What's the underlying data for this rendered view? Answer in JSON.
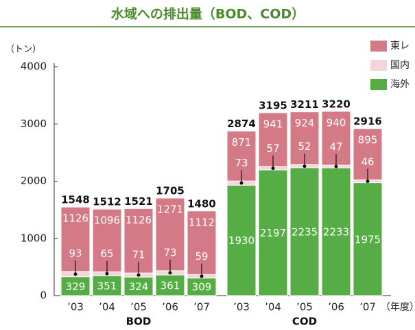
{
  "chart_data": {
    "type": "bar",
    "stacked": true,
    "title": "水域への排出量（BOD、COD）",
    "y_unit_label": "（トン）",
    "x_unit_label": "（年度）",
    "ylim": [
      0,
      4000
    ],
    "yticks": [
      0,
      1000,
      2000,
      3000,
      4000
    ],
    "legend": "top-right",
    "series": [
      {
        "name": "東レ",
        "color": "#d47a86"
      },
      {
        "name": "国内",
        "color": "#f3d6d9"
      },
      {
        "name": "海外",
        "color": "#56ad45"
      }
    ],
    "groups": [
      {
        "label": "BOD",
        "categories": [
          "’03",
          "’04",
          "’05",
          "’06",
          "’07"
        ],
        "values": [
          [
            1126,
            1096,
            1126,
            1271,
            1112
          ],
          [
            93,
            65,
            71,
            73,
            59
          ],
          [
            329,
            351,
            324,
            361,
            309
          ]
        ],
        "totals": [
          1548,
          1512,
          1521,
          1705,
          1480
        ]
      },
      {
        "label": "COD",
        "categories": [
          "’03",
          "’04",
          "’05",
          "’06",
          "’07"
        ],
        "values": [
          [
            871,
            941,
            924,
            940,
            895
          ],
          [
            73,
            57,
            52,
            47,
            46
          ],
          [
            1930,
            2197,
            2235,
            2233,
            1975
          ]
        ],
        "totals": [
          2874,
          3195,
          3211,
          3220,
          2916
        ]
      }
    ]
  }
}
